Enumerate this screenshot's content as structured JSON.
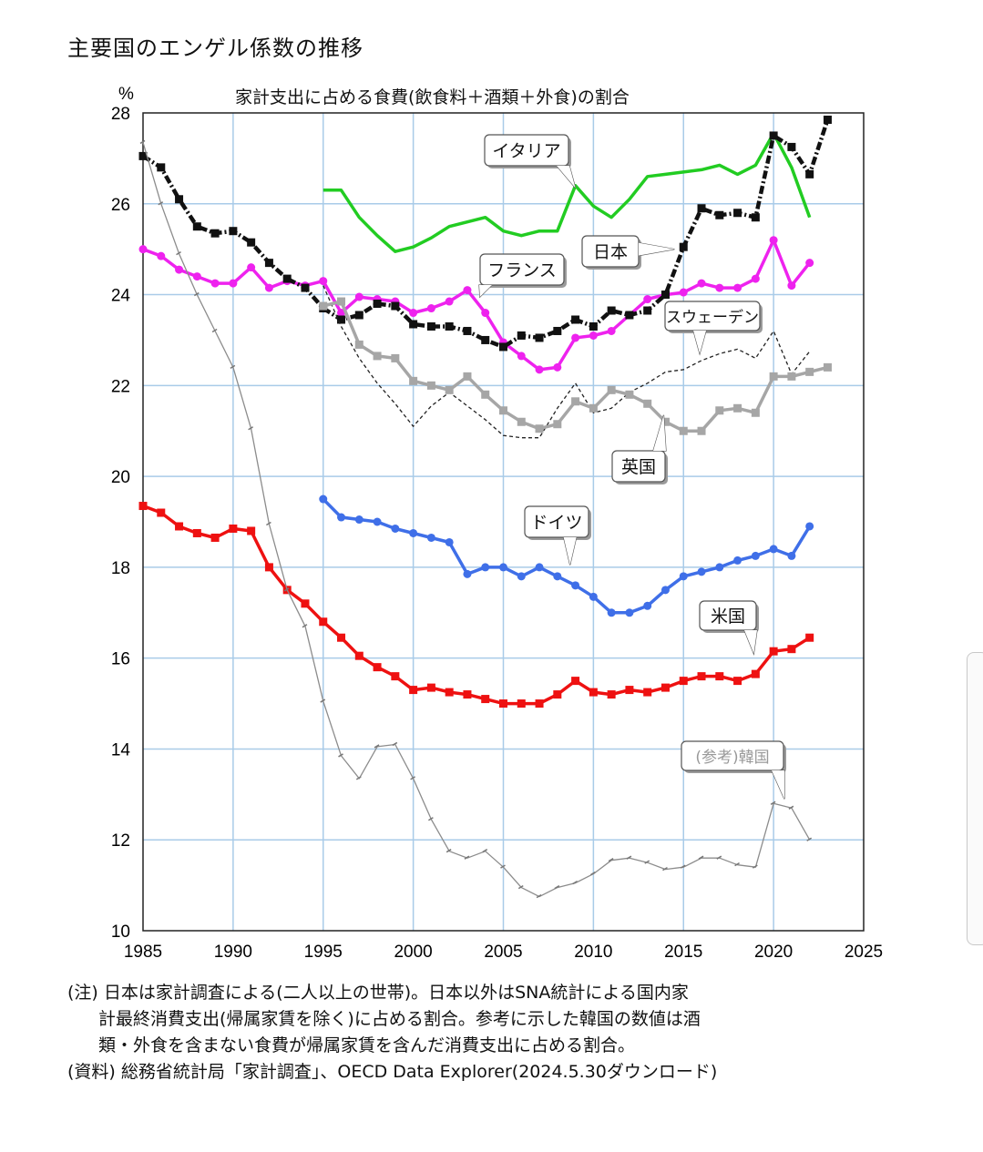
{
  "header": {
    "title": "主要国のエンゲル係数の推移",
    "subtitle": "家計支出に占める食費(飲食料＋酒類＋外食)の割合"
  },
  "chart_data": {
    "type": "line",
    "ylabel": "%",
    "xlim": [
      1985,
      2025
    ],
    "ylim": [
      10,
      28
    ],
    "x_ticks": [
      "1985",
      "1990",
      "1995",
      "2000",
      "2005",
      "2010",
      "2015",
      "2020",
      "2025"
    ],
    "y_ticks": [
      "10",
      "12",
      "14",
      "16",
      "18",
      "20",
      "22",
      "24",
      "26",
      "28"
    ],
    "grid": true,
    "series": [
      {
        "name": "イタリア",
        "color": "#22cc22",
        "style": "solid-thick",
        "marker": "none",
        "x": [
          1995,
          1996,
          1997,
          1998,
          1999,
          2000,
          2001,
          2002,
          2003,
          2004,
          2005,
          2006,
          2007,
          2008,
          2009,
          2010,
          2011,
          2012,
          2013,
          2014,
          2015,
          2016,
          2017,
          2018,
          2019,
          2020,
          2021,
          2022
        ],
        "values": [
          26.3,
          26.3,
          25.7,
          25.3,
          24.95,
          25.05,
          25.25,
          25.5,
          25.6,
          25.7,
          25.4,
          25.3,
          25.4,
          25.4,
          26.4,
          25.95,
          25.7,
          26.1,
          26.6,
          26.65,
          26.7,
          26.75,
          26.85,
          26.65,
          26.85,
          27.55,
          26.8,
          25.7
        ],
        "label": "イタリア",
        "label_color": "#111"
      },
      {
        "name": "フランス",
        "color": "#ee22ee",
        "style": "solid-thick",
        "marker": "circle",
        "x": [
          1985,
          1986,
          1987,
          1988,
          1989,
          1990,
          1991,
          1992,
          1993,
          1994,
          1995,
          1996,
          1997,
          1998,
          1999,
          2000,
          2001,
          2002,
          2003,
          2004,
          2005,
          2006,
          2007,
          2008,
          2009,
          2010,
          2011,
          2012,
          2013,
          2014,
          2015,
          2016,
          2017,
          2018,
          2019,
          2020,
          2021,
          2022
        ],
        "values": [
          25.0,
          24.85,
          24.55,
          24.4,
          24.25,
          24.25,
          24.6,
          24.15,
          24.3,
          24.2,
          24.3,
          23.6,
          23.95,
          23.9,
          23.85,
          23.6,
          23.7,
          23.85,
          24.1,
          23.6,
          22.95,
          22.65,
          22.35,
          22.4,
          23.05,
          23.1,
          23.2,
          23.55,
          23.9,
          24.0,
          24.05,
          24.25,
          24.15,
          24.15,
          24.35,
          25.2,
          24.2,
          24.7
        ],
        "label": "フランス",
        "label_color": "#111"
      },
      {
        "name": "日本",
        "color": "#111111",
        "style": "dashdot-thick",
        "marker": "square",
        "x": [
          1985,
          1986,
          1987,
          1988,
          1989,
          1990,
          1991,
          1992,
          1993,
          1994,
          1995,
          1996,
          1997,
          1998,
          1999,
          2000,
          2001,
          2002,
          2003,
          2004,
          2005,
          2006,
          2007,
          2008,
          2009,
          2010,
          2011,
          2012,
          2013,
          2014,
          2015,
          2016,
          2017,
          2018,
          2019,
          2020,
          2021,
          2022,
          2023
        ],
        "values": [
          27.05,
          26.8,
          26.1,
          25.5,
          25.35,
          25.4,
          25.15,
          24.7,
          24.35,
          24.15,
          23.7,
          23.45,
          23.55,
          23.8,
          23.75,
          23.35,
          23.3,
          23.3,
          23.2,
          23.0,
          22.85,
          23.1,
          23.05,
          23.2,
          23.45,
          23.3,
          23.65,
          23.55,
          23.65,
          24.0,
          25.05,
          25.9,
          25.75,
          25.8,
          25.7,
          27.5,
          27.25,
          26.65,
          27.85
        ],
        "label": "日本",
        "label_color": "#111"
      },
      {
        "name": "スウェーデン",
        "color": "#222222",
        "style": "dashed-thin",
        "marker": "none",
        "x": [
          1985,
          1986,
          1987,
          1988,
          1989,
          1990,
          1991,
          1992,
          1993,
          1994,
          1995,
          1996,
          1997,
          1998,
          1999,
          2000,
          2001,
          2002,
          2003,
          2004,
          2005,
          2006,
          2007,
          2008,
          2009,
          2010,
          2011,
          2012,
          2013,
          2014,
          2015,
          2016,
          2017,
          2018,
          2019,
          2020,
          2021,
          2022
        ],
        "values": [
          null,
          null,
          null,
          null,
          null,
          null,
          null,
          null,
          null,
          null,
          24.2,
          23.3,
          22.6,
          22.05,
          21.6,
          21.1,
          21.55,
          21.85,
          21.55,
          21.25,
          20.9,
          20.85,
          20.85,
          21.5,
          22.05,
          21.4,
          21.5,
          21.85,
          22.05,
          22.3,
          22.35,
          22.55,
          22.7,
          22.8,
          22.6,
          23.2,
          22.25,
          22.75
        ],
        "label": "スウェーデン",
        "label_color": "#111"
      },
      {
        "name": "英国",
        "color": "#a6a6a6",
        "style": "solid-thick",
        "marker": "square",
        "x": [
          1995,
          1996,
          1997,
          1998,
          1999,
          2000,
          2001,
          2002,
          2003,
          2004,
          2005,
          2006,
          2007,
          2008,
          2009,
          2010,
          2011,
          2012,
          2013,
          2014,
          2015,
          2016,
          2017,
          2018,
          2019,
          2020,
          2021,
          2022,
          2023
        ],
        "values": [
          23.75,
          23.85,
          22.9,
          22.65,
          22.6,
          22.1,
          22.0,
          21.9,
          22.2,
          21.8,
          21.45,
          21.2,
          21.05,
          21.15,
          21.65,
          21.5,
          21.9,
          21.8,
          21.6,
          21.2,
          21.0,
          21.0,
          21.45,
          21.5,
          21.4,
          22.2,
          22.2,
          22.3,
          22.4
        ],
        "label": "英国",
        "label_color": "#111"
      },
      {
        "name": "ドイツ",
        "color": "#3f6fe8",
        "style": "solid-thick",
        "marker": "circle",
        "x": [
          1995,
          1996,
          1997,
          1998,
          1999,
          2000,
          2001,
          2002,
          2003,
          2004,
          2005,
          2006,
          2007,
          2008,
          2009,
          2010,
          2011,
          2012,
          2013,
          2014,
          2015,
          2016,
          2017,
          2018,
          2019,
          2020,
          2021,
          2022
        ],
        "values": [
          19.5,
          19.1,
          19.05,
          19.0,
          18.85,
          18.75,
          18.65,
          18.55,
          17.85,
          18.0,
          18.0,
          17.8,
          18.0,
          17.8,
          17.6,
          17.35,
          17.0,
          17.0,
          17.15,
          17.5,
          17.8,
          17.9,
          18.0,
          18.15,
          18.25,
          18.4,
          18.25,
          18.9
        ],
        "label": "ドイツ",
        "label_color": "#111"
      },
      {
        "name": "米国",
        "color": "#ee1111",
        "style": "solid-thick",
        "marker": "square",
        "x": [
          1985,
          1986,
          1987,
          1988,
          1989,
          1990,
          1991,
          1992,
          1993,
          1994,
          1995,
          1996,
          1997,
          1998,
          1999,
          2000,
          2001,
          2002,
          2003,
          2004,
          2005,
          2006,
          2007,
          2008,
          2009,
          2010,
          2011,
          2012,
          2013,
          2014,
          2015,
          2016,
          2017,
          2018,
          2019,
          2020,
          2021,
          2022
        ],
        "values": [
          19.35,
          19.2,
          18.9,
          18.75,
          18.65,
          18.85,
          18.8,
          18.0,
          17.5,
          17.2,
          16.8,
          16.45,
          16.05,
          15.8,
          15.6,
          15.3,
          15.35,
          15.25,
          15.2,
          15.1,
          15.0,
          15.0,
          15.0,
          15.2,
          15.5,
          15.25,
          15.2,
          15.3,
          15.25,
          15.35,
          15.5,
          15.6,
          15.6,
          15.5,
          15.65,
          16.15,
          16.2,
          16.45
        ],
        "label": "米国",
        "label_color": "#111"
      },
      {
        "name": "(参考)韓国",
        "color": "#8c8c8c",
        "style": "solid-thin",
        "marker": "tick",
        "x": [
          1985,
          1986,
          1987,
          1988,
          1989,
          1990,
          1991,
          1992,
          1993,
          1994,
          1995,
          1996,
          1997,
          1998,
          1999,
          2000,
          2001,
          2002,
          2003,
          2004,
          2005,
          2006,
          2007,
          2008,
          2009,
          2010,
          2011,
          2012,
          2013,
          2014,
          2015,
          2016,
          2017,
          2018,
          2019,
          2020,
          2021,
          2022
        ],
        "values": [
          27.35,
          26.0,
          24.9,
          24.0,
          23.2,
          22.4,
          21.05,
          18.95,
          17.5,
          16.7,
          15.05,
          13.85,
          13.35,
          14.05,
          14.1,
          13.35,
          12.45,
          11.75,
          11.6,
          11.75,
          11.4,
          10.95,
          10.75,
          10.95,
          11.05,
          11.25,
          11.55,
          11.6,
          11.5,
          11.35,
          11.4,
          11.6,
          11.6,
          11.45,
          11.4,
          12.8,
          12.7,
          12.0
        ],
        "label": "(参考)韓国",
        "label_color": "#999999"
      }
    ]
  },
  "notes": {
    "line1": "(注) 日本は家計調査による(二人以上の世帯)。日本以外はSNA統計による国内家",
    "line2": "計最終消費支出(帰属家賃を除く)に占める割合。参考に示した韓国の数値は酒",
    "line3": "類・外食を含まない食費が帰属家賃を含んだ消費支出に占める割合。",
    "line4": "(資料) 総務省統計局「家計調査」、OECD Data Explorer(2024.5.30ダウンロード)"
  }
}
